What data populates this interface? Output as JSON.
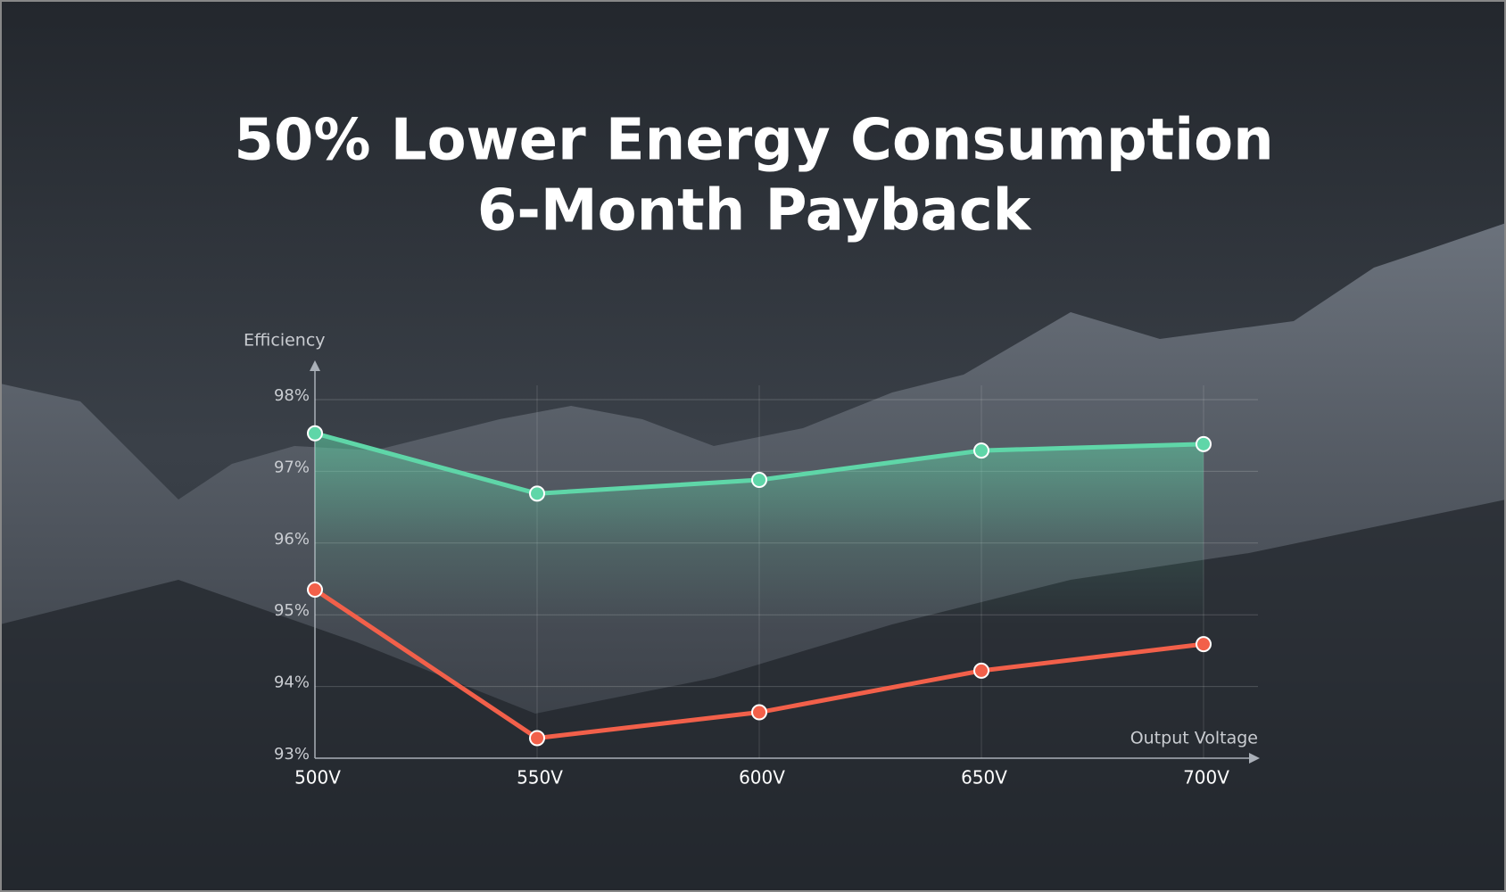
{
  "chart_data": {
    "type": "line",
    "title_lines": [
      "50% Lower Energy Consumption",
      "6-Month Payback"
    ],
    "y_label": "Efficiency",
    "x_label": "Output Voltage",
    "categories": [
      "500V",
      "550V",
      "600V",
      "650V",
      "700V"
    ],
    "series": [
      {
        "color": "#5fd6a8",
        "values": [
          97.53,
          96.69,
          96.88,
          97.29,
          97.38
        ]
      },
      {
        "color": "#f2604a",
        "values": [
          95.35,
          93.28,
          93.64,
          94.22,
          94.59
        ]
      }
    ],
    "ylim": [
      93,
      98
    ],
    "yticks": [
      {
        "value": 93,
        "label": "93%"
      },
      {
        "value": 94,
        "label": "94%"
      },
      {
        "value": 95,
        "label": "95%"
      },
      {
        "value": 96,
        "label": "96%"
      },
      {
        "value": 97,
        "label": "97%"
      },
      {
        "value": 98,
        "label": "98%"
      }
    ],
    "grid": true
  }
}
